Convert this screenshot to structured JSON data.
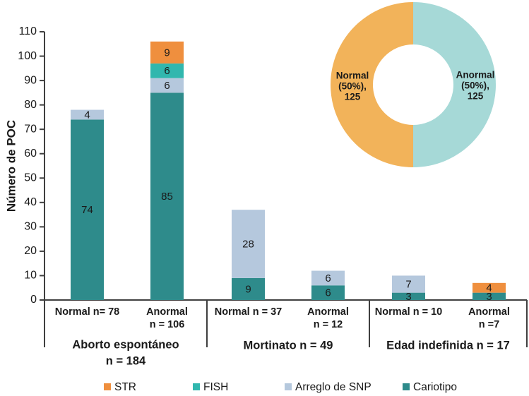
{
  "chart_data": [
    {
      "type": "bar",
      "title": "",
      "ylabel": "Número de POC",
      "ylim": [
        0,
        110
      ],
      "yticks": [
        0,
        10,
        20,
        30,
        40,
        50,
        60,
        70,
        80,
        90,
        100,
        110
      ],
      "grid": false,
      "legend_position": "bottom",
      "stack_order": [
        "Cariotipo",
        "Arreglo de SNP",
        "FISH",
        "STR"
      ],
      "legend": [
        "STR",
        "FISH",
        "Arreglo de SNP",
        "Cariotipo"
      ],
      "series_colors": {
        "STR": "#EF8F3E",
        "FISH": "#31B7AE",
        "Arreglo de SNP": "#B5C8DD",
        "Cariotipo": "#2E8B8B"
      },
      "groups": [
        {
          "label_lines": [
            "Aborto espontáneo",
            "n = 184"
          ],
          "bars": [
            {
              "label_lines": [
                "Normal n= 78"
              ],
              "segments": {
                "Cariotipo": 74,
                "Arreglo de SNP": 4
              }
            },
            {
              "label_lines": [
                "Anormal",
                "n = 106"
              ],
              "segments": {
                "Cariotipo": 85,
                "Arreglo de SNP": 6,
                "FISH": 6,
                "STR": 9
              }
            }
          ]
        },
        {
          "label_lines": [
            "Mortinato n = 49"
          ],
          "bars": [
            {
              "label_lines": [
                "Normal n = 37"
              ],
              "segments": {
                "Cariotipo": 9,
                "Arreglo de SNP": 28
              }
            },
            {
              "label_lines": [
                "Anormal",
                "n = 12"
              ],
              "segments": {
                "Cariotipo": 6,
                "Arreglo de SNP": 6
              }
            }
          ]
        },
        {
          "label_lines": [
            "Edad indefinida n = 17"
          ],
          "bars": [
            {
              "label_lines": [
                "Normal n = 10"
              ],
              "segments": {
                "Cariotipo": 3,
                "Arreglo de SNP": 7
              }
            },
            {
              "label_lines": [
                "Anormal",
                "n =7"
              ],
              "segments": {
                "Cariotipo": 3,
                "STR": 4
              }
            }
          ]
        }
      ]
    },
    {
      "type": "pie",
      "donut": true,
      "slices": [
        {
          "name": "Normal",
          "value": 125,
          "percent": "50%",
          "color": "#F2B35A",
          "label_lines": [
            "Normal",
            "(50%),",
            "125"
          ]
        },
        {
          "name": "Anormal",
          "value": 125,
          "percent": "50%",
          "color": "#A6D9D7",
          "label_lines": [
            "Anormal",
            "(50%),",
            "125"
          ]
        }
      ]
    }
  ],
  "colors": {
    "text": "#1a1a1a",
    "axis": "#3f3f3f",
    "background": "#ffffff"
  }
}
